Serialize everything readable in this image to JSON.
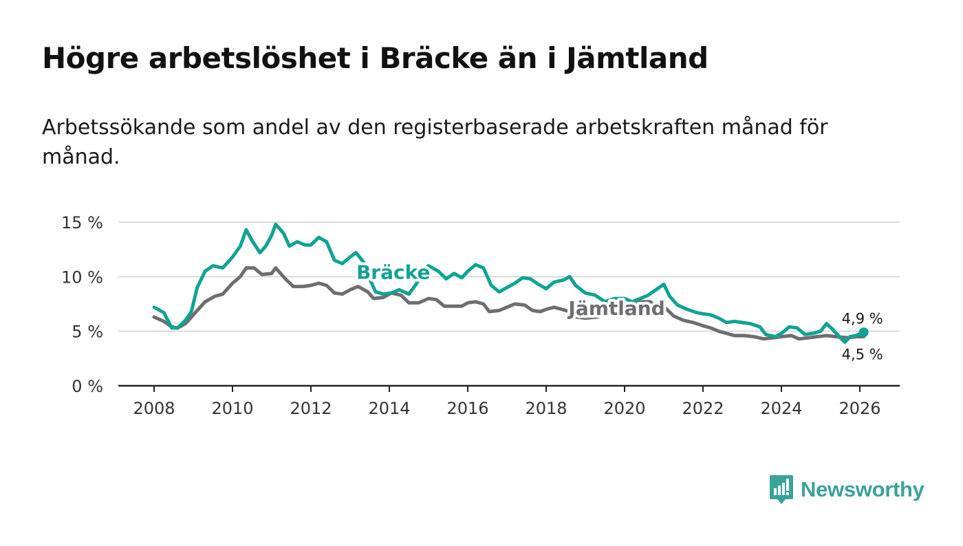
{
  "title": "Högre arbetslöshet i Bräcke än i Jämtland",
  "subtitle": "Arbetssökande som andel av den registerbaserade arbetskraften månad för månad.",
  "brand": {
    "name": "Newsworthy",
    "color": "#3aa39a"
  },
  "chart_data": {
    "type": "line",
    "title": "Högre arbetslöshet i Bräcke än i Jämtland",
    "xlabel": "",
    "ylabel": "",
    "xlim": [
      2007.5,
      2027
    ],
    "ylim": [
      0,
      15
    ],
    "grid": true,
    "x_ticks": [
      2008,
      2010,
      2012,
      2014,
      2016,
      2018,
      2020,
      2022,
      2024,
      2026
    ],
    "x_tick_labels": [
      "2008",
      "2010",
      "2012",
      "2014",
      "2016",
      "2018",
      "2020",
      "2022",
      "2024",
      "2026"
    ],
    "y_ticks": [
      0,
      5,
      10,
      15
    ],
    "y_tick_labels": [
      "0 %",
      "5 %",
      "10 %",
      "15 %"
    ],
    "series": [
      {
        "name": "Bräcke",
        "color": "#10a393",
        "label_at": [
          2014.1,
          9.8
        ],
        "end_label": "4,9 %",
        "end_value": 4.9,
        "points": [
          [
            2008.0,
            7.2
          ],
          [
            2008.25,
            6.7
          ],
          [
            2008.45,
            5.3
          ],
          [
            2008.6,
            5.3
          ],
          [
            2008.8,
            6.0
          ],
          [
            2008.95,
            6.8
          ],
          [
            2009.1,
            9.0
          ],
          [
            2009.3,
            10.5
          ],
          [
            2009.5,
            11.0
          ],
          [
            2009.75,
            10.8
          ],
          [
            2010.0,
            11.8
          ],
          [
            2010.2,
            12.8
          ],
          [
            2010.35,
            14.3
          ],
          [
            2010.5,
            13.3
          ],
          [
            2010.7,
            12.2
          ],
          [
            2010.85,
            12.8
          ],
          [
            2011.0,
            13.8
          ],
          [
            2011.1,
            14.8
          ],
          [
            2011.3,
            14.0
          ],
          [
            2011.45,
            12.8
          ],
          [
            2011.65,
            13.2
          ],
          [
            2011.85,
            12.9
          ],
          [
            2012.0,
            12.9
          ],
          [
            2012.2,
            13.6
          ],
          [
            2012.4,
            13.2
          ],
          [
            2012.6,
            11.5
          ],
          [
            2012.8,
            11.2
          ],
          [
            2013.0,
            11.8
          ],
          [
            2013.15,
            12.2
          ],
          [
            2013.35,
            11.3
          ],
          [
            2013.5,
            9.8
          ],
          [
            2013.65,
            8.6
          ],
          [
            2013.85,
            8.4
          ],
          [
            2014.05,
            8.5
          ],
          [
            2014.25,
            8.8
          ],
          [
            2014.5,
            8.4
          ],
          [
            2014.7,
            9.4
          ],
          [
            2014.85,
            10.6
          ],
          [
            2015.0,
            11.0
          ],
          [
            2015.25,
            10.5
          ],
          [
            2015.45,
            9.8
          ],
          [
            2015.65,
            10.3
          ],
          [
            2015.85,
            9.9
          ],
          [
            2016.0,
            10.5
          ],
          [
            2016.2,
            11.1
          ],
          [
            2016.4,
            10.8
          ],
          [
            2016.6,
            9.2
          ],
          [
            2016.8,
            8.6
          ],
          [
            2017.0,
            9.0
          ],
          [
            2017.2,
            9.4
          ],
          [
            2017.4,
            9.9
          ],
          [
            2017.6,
            9.8
          ],
          [
            2017.8,
            9.3
          ],
          [
            2018.0,
            8.9
          ],
          [
            2018.2,
            9.5
          ],
          [
            2018.45,
            9.7
          ],
          [
            2018.6,
            10.0
          ],
          [
            2018.75,
            9.2
          ],
          [
            2019.0,
            8.5
          ],
          [
            2019.25,
            8.3
          ],
          [
            2019.5,
            7.7
          ],
          [
            2019.75,
            8.0
          ],
          [
            2020.0,
            8.0
          ],
          [
            2020.2,
            7.7
          ],
          [
            2020.4,
            8.0
          ],
          [
            2020.6,
            8.3
          ],
          [
            2020.8,
            8.8
          ],
          [
            2021.0,
            9.3
          ],
          [
            2021.15,
            8.2
          ],
          [
            2021.35,
            7.4
          ],
          [
            2021.6,
            7.0
          ],
          [
            2021.85,
            6.7
          ],
          [
            2022.0,
            6.6
          ],
          [
            2022.2,
            6.5
          ],
          [
            2022.4,
            6.2
          ],
          [
            2022.6,
            5.8
          ],
          [
            2022.8,
            5.9
          ],
          [
            2023.0,
            5.8
          ],
          [
            2023.2,
            5.7
          ],
          [
            2023.45,
            5.4
          ],
          [
            2023.6,
            4.7
          ],
          [
            2023.85,
            4.5
          ],
          [
            2024.0,
            4.8
          ],
          [
            2024.2,
            5.4
          ],
          [
            2024.4,
            5.3
          ],
          [
            2024.6,
            4.7
          ],
          [
            2024.8,
            4.8
          ],
          [
            2025.0,
            5.0
          ],
          [
            2025.15,
            5.7
          ],
          [
            2025.3,
            5.2
          ],
          [
            2025.5,
            4.4
          ],
          [
            2025.62,
            4.0
          ],
          [
            2025.75,
            4.5
          ],
          [
            2025.9,
            4.6
          ],
          [
            2026.1,
            4.9
          ]
        ]
      },
      {
        "name": "Jämtland",
        "color": "#6d6d72",
        "label_at": [
          2019.8,
          6.5
        ],
        "end_label": "4,5 %",
        "end_value": 4.5,
        "points": [
          [
            2008.0,
            6.3
          ],
          [
            2008.25,
            5.9
          ],
          [
            2008.45,
            5.4
          ],
          [
            2008.6,
            5.3
          ],
          [
            2008.8,
            5.7
          ],
          [
            2009.0,
            6.5
          ],
          [
            2009.3,
            7.7
          ],
          [
            2009.55,
            8.2
          ],
          [
            2009.75,
            8.4
          ],
          [
            2010.0,
            9.4
          ],
          [
            2010.2,
            10.0
          ],
          [
            2010.35,
            10.8
          ],
          [
            2010.55,
            10.8
          ],
          [
            2010.75,
            10.2
          ],
          [
            2011.0,
            10.3
          ],
          [
            2011.1,
            10.8
          ],
          [
            2011.35,
            9.8
          ],
          [
            2011.55,
            9.1
          ],
          [
            2011.8,
            9.1
          ],
          [
            2012.0,
            9.2
          ],
          [
            2012.2,
            9.4
          ],
          [
            2012.4,
            9.2
          ],
          [
            2012.6,
            8.5
          ],
          [
            2012.8,
            8.4
          ],
          [
            2013.0,
            8.8
          ],
          [
            2013.2,
            9.1
          ],
          [
            2013.45,
            8.6
          ],
          [
            2013.6,
            8.0
          ],
          [
            2013.85,
            8.1
          ],
          [
            2014.05,
            8.5
          ],
          [
            2014.3,
            8.3
          ],
          [
            2014.5,
            7.6
          ],
          [
            2014.75,
            7.6
          ],
          [
            2015.0,
            8.0
          ],
          [
            2015.2,
            7.9
          ],
          [
            2015.4,
            7.3
          ],
          [
            2015.65,
            7.3
          ],
          [
            2015.85,
            7.3
          ],
          [
            2016.0,
            7.6
          ],
          [
            2016.2,
            7.7
          ],
          [
            2016.4,
            7.5
          ],
          [
            2016.55,
            6.8
          ],
          [
            2016.8,
            6.9
          ],
          [
            2017.0,
            7.2
          ],
          [
            2017.2,
            7.5
          ],
          [
            2017.45,
            7.4
          ],
          [
            2017.65,
            6.9
          ],
          [
            2017.85,
            6.8
          ],
          [
            2018.0,
            7.0
          ],
          [
            2018.2,
            7.2
          ],
          [
            2018.4,
            7.0
          ],
          [
            2018.6,
            6.8
          ],
          [
            2018.75,
            6.3
          ],
          [
            2019.0,
            6.2
          ],
          [
            2019.3,
            6.3
          ],
          [
            2019.6,
            6.6
          ],
          [
            2019.85,
            6.7
          ],
          [
            2020.0,
            7.0
          ],
          [
            2020.2,
            7.3
          ],
          [
            2020.4,
            7.7
          ],
          [
            2020.65,
            7.7
          ],
          [
            2020.85,
            7.2
          ],
          [
            2021.05,
            7.1
          ],
          [
            2021.25,
            6.4
          ],
          [
            2021.5,
            6.0
          ],
          [
            2021.75,
            5.8
          ],
          [
            2022.0,
            5.5
          ],
          [
            2022.2,
            5.3
          ],
          [
            2022.4,
            5.0
          ],
          [
            2022.6,
            4.8
          ],
          [
            2022.8,
            4.6
          ],
          [
            2023.05,
            4.6
          ],
          [
            2023.3,
            4.5
          ],
          [
            2023.55,
            4.3
          ],
          [
            2023.8,
            4.4
          ],
          [
            2024.0,
            4.5
          ],
          [
            2024.25,
            4.6
          ],
          [
            2024.45,
            4.3
          ],
          [
            2024.7,
            4.4
          ],
          [
            2024.9,
            4.5
          ],
          [
            2025.15,
            4.6
          ],
          [
            2025.4,
            4.5
          ],
          [
            2025.7,
            4.4
          ],
          [
            2025.9,
            4.5
          ],
          [
            2026.1,
            4.5
          ]
        ]
      }
    ]
  }
}
